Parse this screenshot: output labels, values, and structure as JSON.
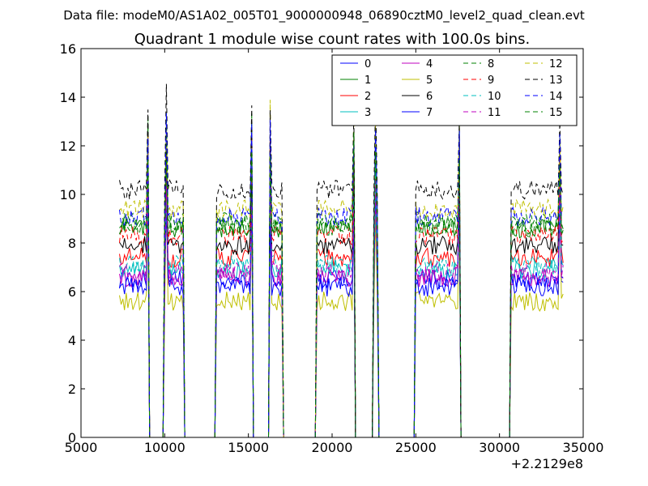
{
  "suptitle": "Data file: modeM0/AS1A02_005T01_9000000948_06890cztM0_level2_quad_clean.evt",
  "chart_data": {
    "type": "line",
    "title": "Quadrant 1 module wise count rates with 100.0s bins.",
    "xlabel": "",
    "ylabel": "",
    "x_offset_label": "+2.2129e8",
    "xlim": [
      5000,
      35000
    ],
    "ylim": [
      0,
      16
    ],
    "xticks": [
      5000,
      10000,
      15000,
      20000,
      25000,
      30000,
      35000
    ],
    "yticks": [
      0,
      2,
      4,
      6,
      8,
      10,
      12,
      14,
      16
    ],
    "grid": false,
    "legend_position": "top-right",
    "bin_seconds": 100.0,
    "segments": [
      {
        "start": 7300,
        "end": 9000
      },
      {
        "start": 10000,
        "end": 11100
      },
      {
        "start": 13100,
        "end": 15200
      },
      {
        "start": 16300,
        "end": 17000
      },
      {
        "start": 19100,
        "end": 21300
      },
      {
        "start": 22500,
        "end": 22700
      },
      {
        "start": 25000,
        "end": 27600
      },
      {
        "start": 30700,
        "end": 33800
      }
    ],
    "spike_times": [
      9000,
      10100,
      15200,
      16300,
      21300,
      22600,
      27600,
      33600
    ],
    "series": [
      {
        "name": "0",
        "color": "#0000ff",
        "dash": "solid",
        "level": 6.5
      },
      {
        "name": "1",
        "color": "#008000",
        "dash": "solid",
        "level": 8.6
      },
      {
        "name": "2",
        "color": "#ff0000",
        "dash": "solid",
        "level": 7.4
      },
      {
        "name": "3",
        "color": "#00bfbf",
        "dash": "solid",
        "level": 6.9
      },
      {
        "name": "4",
        "color": "#bf00bf",
        "dash": "solid",
        "level": 6.6
      },
      {
        "name": "5",
        "color": "#bfbf00",
        "dash": "solid",
        "level": 5.6
      },
      {
        "name": "6",
        "color": "#000000",
        "dash": "solid",
        "level": 7.9
      },
      {
        "name": "7",
        "color": "#0000ff",
        "dash": "solid",
        "level": 6.2
      },
      {
        "name": "8",
        "color": "#008000",
        "dash": "dashed",
        "level": 8.9
      },
      {
        "name": "9",
        "color": "#ff0000",
        "dash": "dashed",
        "level": 8.3
      },
      {
        "name": "10",
        "color": "#00bfbf",
        "dash": "dashed",
        "level": 7.1
      },
      {
        "name": "11",
        "color": "#bf00bf",
        "dash": "dashed",
        "level": 6.8
      },
      {
        "name": "12",
        "color": "#bfbf00",
        "dash": "dashed",
        "level": 9.4
      },
      {
        "name": "13",
        "color": "#000000",
        "dash": "dashed",
        "level": 10.2
      },
      {
        "name": "14",
        "color": "#0000ff",
        "dash": "dashed",
        "level": 9.1
      },
      {
        "name": "15",
        "color": "#008000",
        "dash": "dashed",
        "level": 8.7
      }
    ]
  }
}
